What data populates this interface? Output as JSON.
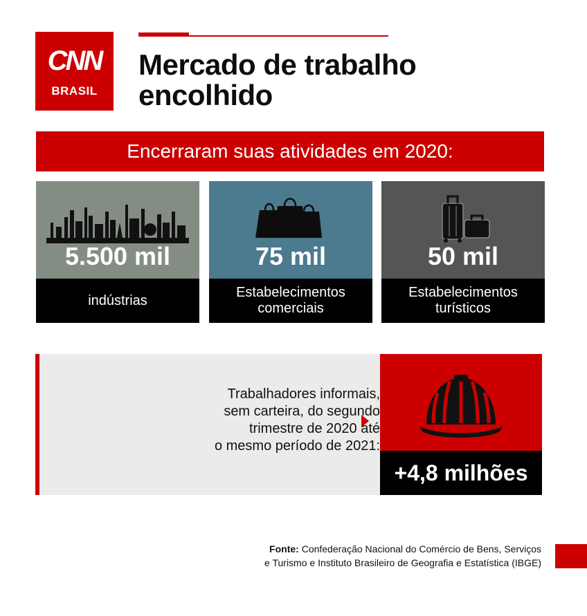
{
  "logo": {
    "mark": "CNN",
    "sub": "BRASIL"
  },
  "title": {
    "line1": "Mercado de trabalho",
    "line2": "encolhido"
  },
  "banner": "Encerraram suas atividades em 2020:",
  "cards": [
    {
      "value": "5.500 mil",
      "label_line1": "indústrias",
      "label_line2": "",
      "icon": "factory-skyline-icon"
    },
    {
      "value": "75 mil",
      "label_line1": "Estabelecimentos",
      "label_line2": "comerciais",
      "icon": "shopping-bags-icon"
    },
    {
      "value": "50 mil",
      "label_line1": "Estabelecimentos",
      "label_line2": "turísticos",
      "icon": "luggage-icon"
    }
  ],
  "informal": {
    "line1": "Trabalhadores informais,",
    "line2": "sem carteira, do segundo",
    "line3": "trimestre de 2020 até",
    "line4": "o mesmo período de 2021:",
    "value": "+4,8 milhões",
    "icon": "hard-hat-icon"
  },
  "source": {
    "label": "Fonte:",
    "line1": "Confederação Nacional do Comércio de Bens, Serviços",
    "line2": "e Turismo e Instituto Brasileiro de Geografia e Estatística (IBGE)"
  },
  "colors": {
    "brand_red": "#cc0000",
    "industry": "#848d84",
    "commerce": "#4c7a8f",
    "tourism": "#555555",
    "info_bg": "#ebebeb"
  }
}
